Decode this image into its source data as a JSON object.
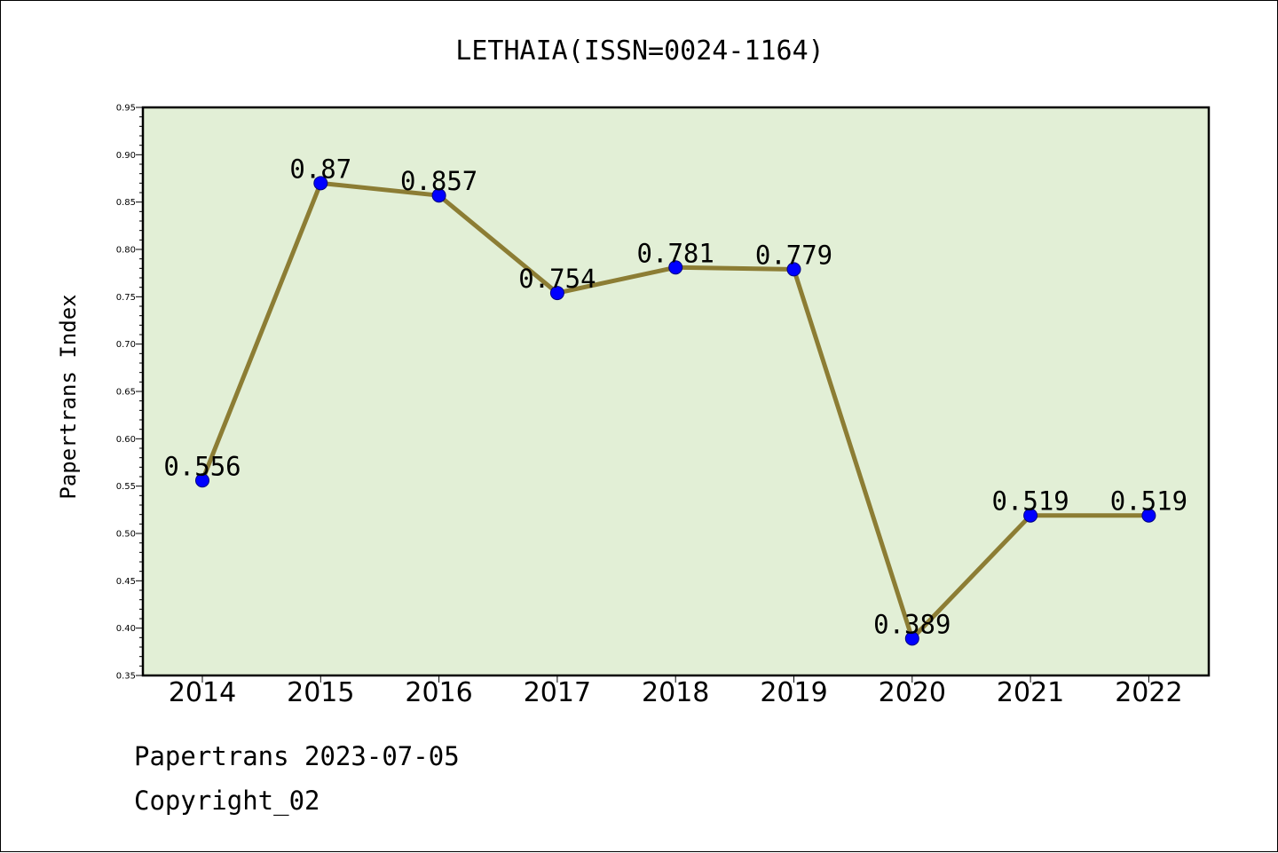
{
  "chart_data": {
    "type": "line",
    "title": "LETHAIA(ISSN=0024-1164)",
    "xlabel": "",
    "ylabel": "Papertrans Index",
    "categories": [
      "2014",
      "2015",
      "2016",
      "2017",
      "2018",
      "2019",
      "2020",
      "2021",
      "2022"
    ],
    "values": [
      0.556,
      0.87,
      0.857,
      0.754,
      0.781,
      0.779,
      0.389,
      0.519,
      0.519
    ],
    "data_labels": [
      "0.556",
      "0.87",
      "0.857",
      "0.754",
      "0.781",
      "0.779",
      "0.389",
      "0.519",
      "0.519"
    ],
    "yticks": [
      "0.35",
      "0.40",
      "0.45",
      "0.50",
      "0.55",
      "0.60",
      "0.65",
      "0.70",
      "0.75",
      "0.80",
      "0.85",
      "0.90",
      "0.95"
    ],
    "ylim": [
      0.35,
      0.95
    ],
    "grid": false,
    "colors": {
      "plot_background": "#e2efd6",
      "line": "#8c7d34",
      "marker": "#0000ff",
      "marker_edge": "#000080"
    }
  },
  "footer": {
    "line1": "Papertrans 2023-07-05",
    "line2": "Copyright_02"
  }
}
